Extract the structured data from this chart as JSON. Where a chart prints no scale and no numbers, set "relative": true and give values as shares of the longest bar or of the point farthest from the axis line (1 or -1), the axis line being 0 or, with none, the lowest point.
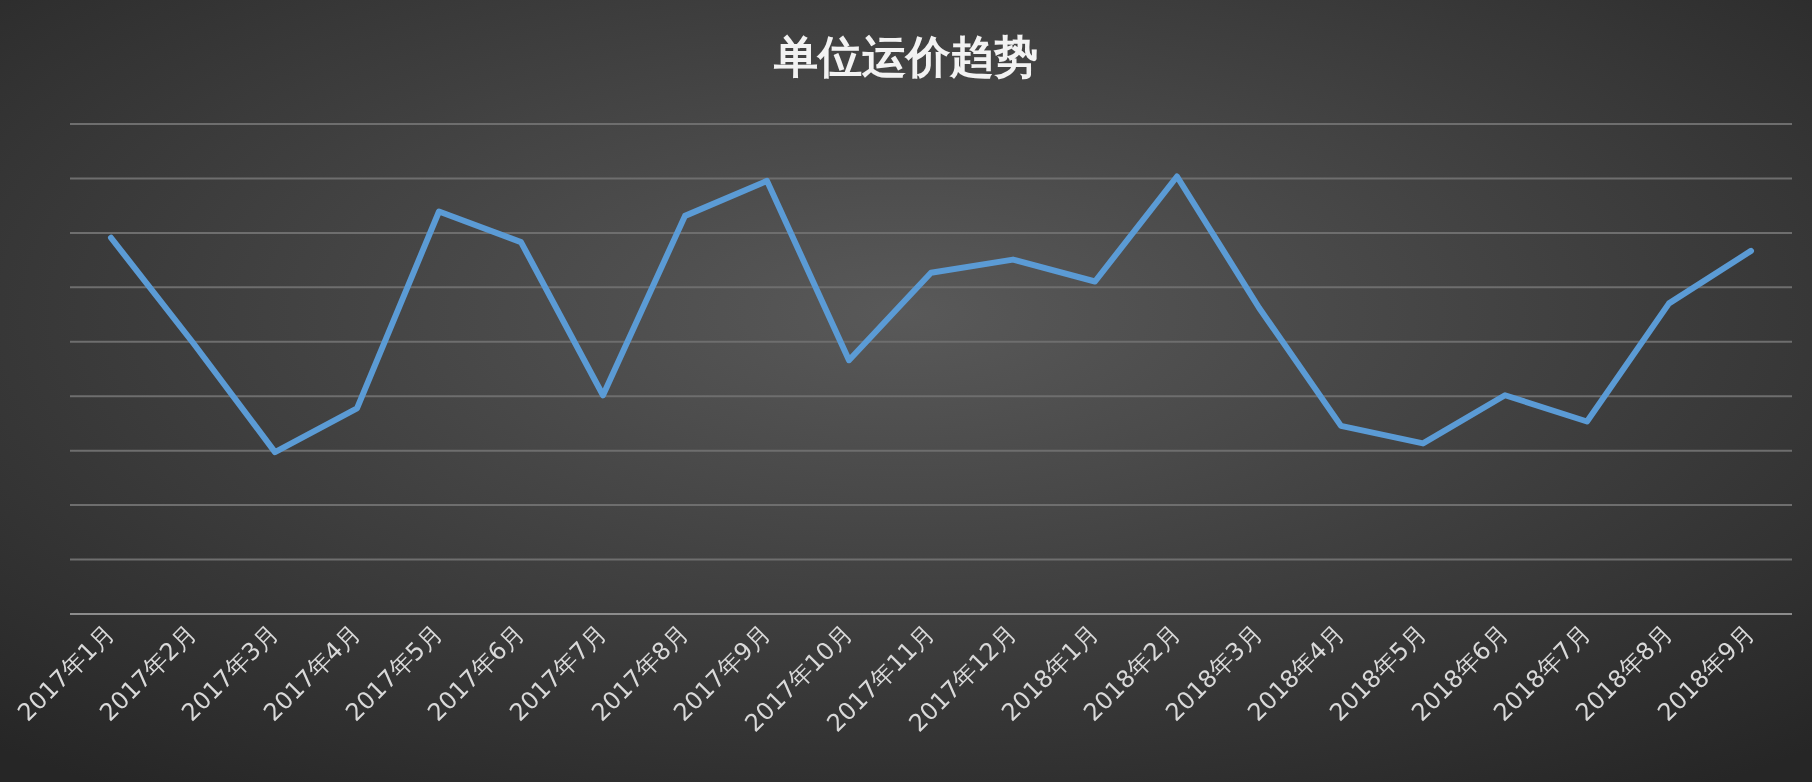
{
  "chart_data": {
    "type": "line",
    "title": "单位运价趋势",
    "relative": true,
    "grid": "y",
    "marker": "none",
    "line_style": "solid",
    "categories": [
      "2017年1月",
      "2017年2月",
      "2017年3月",
      "2017年4月",
      "2017年5月",
      "2017年6月",
      "2017年7月",
      "2017年8月",
      "2017年9月",
      "2017年10月",
      "2017年11月",
      "2017年12月",
      "2018年1月",
      "2018年2月",
      "2018年3月",
      "2018年4月",
      "2018年5月",
      "2018年6月",
      "2018年7月",
      "2018年8月",
      "2018年9月"
    ],
    "series": [
      {
        "color": "#5b9bd5",
        "values": [
          0.86,
          0.62,
          0.37,
          0.47,
          0.92,
          0.85,
          0.5,
          0.91,
          0.99,
          0.58,
          0.78,
          0.81,
          0.76,
          1,
          0.7,
          0.43,
          0.39,
          0.5,
          0.44,
          0.71,
          0.83
        ]
      }
    ]
  }
}
